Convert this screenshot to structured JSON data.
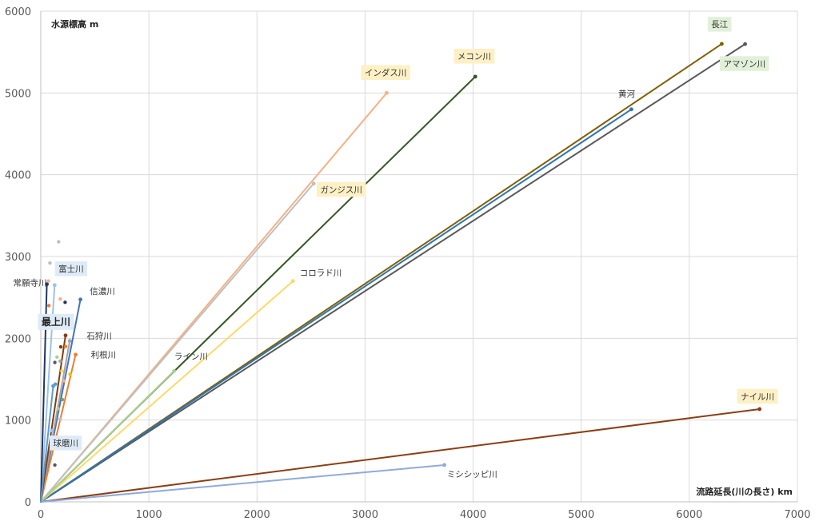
{
  "chart_data": {
    "type": "line",
    "title": "",
    "xlabel": "流路延長(川の長さ) km",
    "ylabel": "水源標高 m",
    "xlim": [
      0,
      7000
    ],
    "ylim": [
      0,
      6000
    ],
    "x_ticks": [
      0,
      1000,
      2000,
      3000,
      4000,
      5000,
      6000,
      7000
    ],
    "y_ticks": [
      0,
      1000,
      2000,
      3000,
      4000,
      5000,
      6000
    ],
    "grid": true,
    "legend": "none",
    "series": [
      {
        "name": "ナイル川",
        "x": [
          0,
          6650
        ],
        "y": [
          0,
          1134
        ],
        "color": "#8c3d12",
        "label_bg": "#fdf0c4",
        "label_pos": [
          6630,
          1290
        ]
      },
      {
        "name": "アマゾン川",
        "x": [
          0,
          6516
        ],
        "y": [
          0,
          5598
        ],
        "color": "#595959",
        "label_bg": "#e2f0d9",
        "label_pos": [
          6510,
          5360
        ]
      },
      {
        "name": "長江",
        "x": [
          0,
          6300
        ],
        "y": [
          0,
          5600
        ],
        "color": "#7f6000",
        "label_bg": "#e2f0d9",
        "label_pos": [
          6280,
          5840
        ]
      },
      {
        "name": "黄河",
        "x": [
          0,
          5464
        ],
        "y": [
          0,
          4800
        ],
        "color": "#2e75b6",
        "label_bg": "",
        "label_pos": [
          5420,
          4990
        ]
      },
      {
        "name": "メコン川",
        "x": [
          0,
          4020
        ],
        "y": [
          0,
          5200
        ],
        "color": "#375623",
        "label_bg": "#fdf0c4",
        "label_pos": [
          4010,
          5450
        ]
      },
      {
        "name": "インダス川",
        "x": [
          0,
          3200
        ],
        "y": [
          0,
          5000
        ],
        "color": "#f4b183",
        "label_bg": "#fdf0c4",
        "label_pos": [
          3190,
          5250
        ]
      },
      {
        "name": "ガンジス川",
        "x": [
          0,
          2525
        ],
        "y": [
          0,
          3892
        ],
        "color": "#bfbfbf",
        "label_bg": "#fdf0c4",
        "label_pos": [
          2780,
          3820
        ]
      },
      {
        "name": "コロラド川",
        "x": [
          0,
          2333
        ],
        "y": [
          0,
          2700
        ],
        "color": "#ffd966",
        "label_bg": "",
        "label_pos": [
          2590,
          2800
        ]
      },
      {
        "name": "ライン川",
        "x": [
          0,
          1233
        ],
        "y": [
          0,
          1600
        ],
        "color": "#a9d18e",
        "label_bg": "",
        "label_pos": [
          1390,
          1780
        ]
      },
      {
        "name": "ミシシッピ川",
        "x": [
          0,
          3734
        ],
        "y": [
          0,
          450
        ],
        "color": "#8faadc",
        "label_bg": "",
        "label_pos": [
          3990,
          340
        ]
      },
      {
        "name": "信濃川",
        "x": [
          0,
          367
        ],
        "y": [
          0,
          2475
        ],
        "color": "#4472c4",
        "label_bg": "",
        "label_pos": [
          570,
          2580
        ]
      },
      {
        "name": "利根川",
        "x": [
          0,
          322
        ],
        "y": [
          0,
          1800
        ],
        "color": "#ed7d31",
        "label_bg": "",
        "label_pos": [
          580,
          1800
        ]
      },
      {
        "name": "石狩川",
        "x": [
          0,
          268
        ],
        "y": [
          0,
          1967
        ],
        "color": "#a5a5a5",
        "label_bg": "",
        "label_pos": [
          540,
          2030
        ]
      },
      {
        "name": "最上川",
        "x": [
          0,
          229
        ],
        "y": [
          0,
          2035
        ],
        "color": "#843c0c",
        "label_bg": "#deebf7",
        "label_pos": [
          140,
          2200
        ]
      },
      {
        "name": "富士川",
        "x": [
          0,
          128
        ],
        "y": [
          0,
          2650
        ],
        "color": "#9dc3e6",
        "label_bg": "#deebf7",
        "label_pos": [
          280,
          2850
        ]
      },
      {
        "name": "常願寺川",
        "x": [
          0,
          56
        ],
        "y": [
          0,
          2661
        ],
        "color": "#1f3864",
        "label_bg": "",
        "label_pos": [
          -100,
          2680
        ]
      },
      {
        "name": "球磨川",
        "x": [
          0,
          115
        ],
        "y": [
          0,
          1417
        ],
        "color": "#5b9bd5",
        "label_bg": "#deebf7",
        "label_pos": [
          230,
          720
        ]
      }
    ],
    "extra_points": [
      {
        "x": 165,
        "y": 3180,
        "color": "#bfbfbf"
      },
      {
        "x": 85,
        "y": 2920,
        "color": "#bfbfbf"
      },
      {
        "x": 70,
        "y": 2700,
        "color": "#f4b183"
      },
      {
        "x": 180,
        "y": 2480,
        "color": "#f4b183"
      },
      {
        "x": 225,
        "y": 2440,
        "color": "#203864"
      },
      {
        "x": 75,
        "y": 2400,
        "color": "#ed7d31"
      },
      {
        "x": 130,
        "y": 2250,
        "color": "#9dc3e6"
      },
      {
        "x": 230,
        "y": 1900,
        "color": "#ed7d31"
      },
      {
        "x": 185,
        "y": 1895,
        "color": "#843c0c"
      },
      {
        "x": 150,
        "y": 1770,
        "color": "#a9d18e"
      },
      {
        "x": 180,
        "y": 1720,
        "color": "#a5a5a5"
      },
      {
        "x": 130,
        "y": 1705,
        "color": "#595959"
      },
      {
        "x": 195,
        "y": 1600,
        "color": "#ffd966"
      },
      {
        "x": 270,
        "y": 1560,
        "color": "#ffc000"
      },
      {
        "x": 215,
        "y": 1480,
        "color": "#f4b183"
      },
      {
        "x": 135,
        "y": 1440,
        "color": "#5b9bd5"
      },
      {
        "x": 200,
        "y": 1250,
        "color": "#70ad47"
      },
      {
        "x": 160,
        "y": 1140,
        "color": "#a9d18e"
      },
      {
        "x": 180,
        "y": 1010,
        "color": "#bfbfbf"
      },
      {
        "x": 100,
        "y": 870,
        "color": "#9dc3e6"
      },
      {
        "x": 150,
        "y": 760,
        "color": "#ffd966"
      },
      {
        "x": 130,
        "y": 450,
        "color": "#595959"
      }
    ]
  }
}
